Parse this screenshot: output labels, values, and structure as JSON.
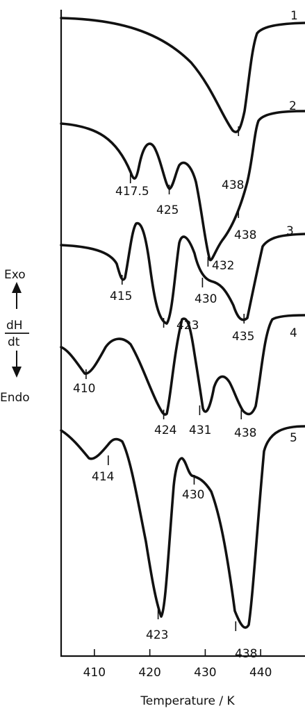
{
  "chart_data": {
    "type": "line",
    "xlabel": "Temperature / K",
    "ylabel_top": "Exo",
    "ylabel_numerator": "dH",
    "ylabel_denominator": "dt",
    "ylabel_bottom": "Endo",
    "x_ticks": [
      "410",
      "420",
      "430",
      "440"
    ],
    "xlim": [
      404,
      448
    ],
    "grid": false,
    "series": [
      {
        "name": "1",
        "peaks": [
          {
            "label": "438",
            "x": 436
          }
        ]
      },
      {
        "name": "2",
        "peaks": [
          {
            "label": "417.5",
            "x": 416.5
          },
          {
            "label": "425",
            "x": 423.5
          },
          {
            "label": "432",
            "x": 430.5
          },
          {
            "label": "438",
            "x": 436
          }
        ]
      },
      {
        "name": "3",
        "peaks": [
          {
            "label": "415",
            "x": 415
          },
          {
            "label": "423",
            "x": 422.5
          },
          {
            "label": "430",
            "x": 429.5
          },
          {
            "label": "435",
            "x": 437
          }
        ]
      },
      {
        "name": "4",
        "peaks": [
          {
            "label": "410",
            "x": 408.5
          },
          {
            "label": "424",
            "x": 422.5
          },
          {
            "label": "431",
            "x": 429
          },
          {
            "label": "438",
            "x": 436.5
          }
        ]
      },
      {
        "name": "5",
        "peaks": [
          {
            "label": "414",
            "x": 412.5
          },
          {
            "label": "423",
            "x": 421.5
          },
          {
            "label": "430",
            "x": 428
          },
          {
            "label": "438",
            "x": 435.5
          }
        ]
      }
    ]
  }
}
